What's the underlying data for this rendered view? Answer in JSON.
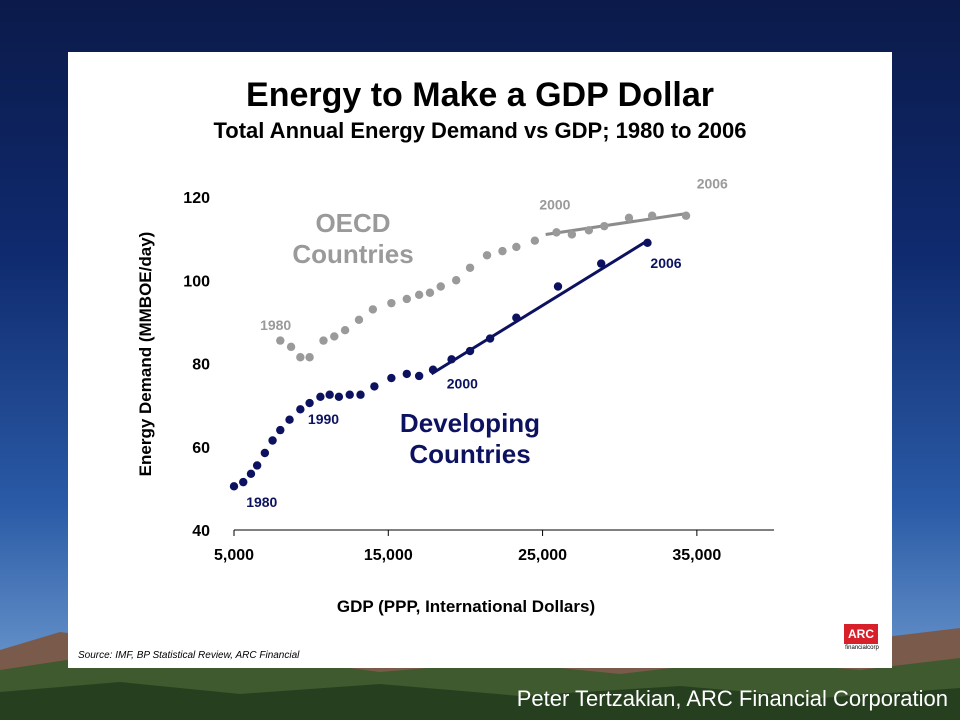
{
  "slide": {
    "title": "Energy to Make a GDP Dollar",
    "subtitle": "Total Annual Energy Demand vs GDP; 1980 to 2006",
    "source": "Source: IMF, BP Statistical Review, ARC Financial",
    "logo_text": "ARC",
    "logo_subtext": "financialcorp",
    "footer_credit": "Peter Tertzakian, ARC Financial Corporation"
  },
  "colors": {
    "oecd": "#9a9a9a",
    "oecd_line": "#8c8c8c",
    "developing": "#0c1260",
    "developing_line": "#0c1260",
    "logo": "#d8202a"
  },
  "chart_data": {
    "type": "scatter",
    "xlabel": "GDP (PPP, International Dollars)",
    "ylabel": "Energy Demand (MMBOE/day)",
    "xlim": [
      5000,
      40000
    ],
    "ylim": [
      40,
      120
    ],
    "x_ticks": [
      5000,
      15000,
      25000,
      35000
    ],
    "x_tick_labels": [
      "5,000",
      "15,000",
      "25,000",
      "35,000"
    ],
    "y_ticks": [
      40,
      60,
      80,
      100,
      120
    ],
    "y_tick_labels": [
      "40",
      "60",
      "80",
      "100",
      "120"
    ],
    "grid": false,
    "series": [
      {
        "name": "OECD Countries",
        "label_lines": [
          "OECD",
          "Countries"
        ],
        "points": [
          [
            8000,
            85.5
          ],
          [
            8700,
            84
          ],
          [
            9300,
            81.5
          ],
          [
            9900,
            81.5
          ],
          [
            10800,
            85.5
          ],
          [
            11500,
            86.5
          ],
          [
            12200,
            88
          ],
          [
            13100,
            90.5
          ],
          [
            14000,
            93
          ],
          [
            15200,
            94.5
          ],
          [
            16200,
            95.5
          ],
          [
            17000,
            96.5
          ],
          [
            17700,
            97
          ],
          [
            18400,
            98.5
          ],
          [
            19400,
            100
          ],
          [
            20300,
            103
          ],
          [
            21400,
            106
          ],
          [
            22400,
            107
          ],
          [
            23300,
            108
          ],
          [
            24500,
            109.5
          ],
          [
            25900,
            111.5
          ],
          [
            26900,
            111
          ],
          [
            28000,
            112
          ],
          [
            29000,
            113
          ],
          [
            30600,
            115
          ],
          [
            32100,
            115.5
          ],
          [
            34300,
            115.5
          ]
        ],
        "trend": [
          [
            25200,
            111
          ],
          [
            34300,
            116
          ]
        ],
        "annotations": [
          {
            "text": "1980",
            "x": 7700,
            "y": 88
          },
          {
            "text": "2000",
            "x": 25800,
            "y": 117
          },
          {
            "text": "2006",
            "x": 36000,
            "y": 122
          }
        ]
      },
      {
        "name": "Developing Countries",
        "label_lines": [
          "Developing",
          "Countries"
        ],
        "points": [
          [
            5000,
            50.5
          ],
          [
            5600,
            51.5
          ],
          [
            6100,
            53.5
          ],
          [
            6500,
            55.5
          ],
          [
            7000,
            58.5
          ],
          [
            7500,
            61.5
          ],
          [
            8000,
            64
          ],
          [
            8600,
            66.5
          ],
          [
            9300,
            69
          ],
          [
            9900,
            70.5
          ],
          [
            10600,
            72
          ],
          [
            11200,
            72.5
          ],
          [
            11800,
            72
          ],
          [
            12500,
            72.5
          ],
          [
            13200,
            72.5
          ],
          [
            14100,
            74.5
          ],
          [
            15200,
            76.5
          ],
          [
            16200,
            77.5
          ],
          [
            17000,
            77
          ],
          [
            17900,
            78.5
          ],
          [
            19100,
            81
          ],
          [
            20300,
            83
          ],
          [
            21600,
            86
          ],
          [
            23300,
            91
          ],
          [
            26000,
            98.5
          ],
          [
            28800,
            104
          ],
          [
            31800,
            109
          ]
        ],
        "trend": [
          [
            17800,
            77.5
          ],
          [
            31800,
            109.5
          ]
        ],
        "annotations": [
          {
            "text": "1980",
            "x": 6800,
            "y": 45.5
          },
          {
            "text": "1990",
            "x": 10800,
            "y": 65.5
          },
          {
            "text": "2000",
            "x": 19800,
            "y": 74
          },
          {
            "text": "2006",
            "x": 33000,
            "y": 103
          }
        ]
      }
    ]
  }
}
